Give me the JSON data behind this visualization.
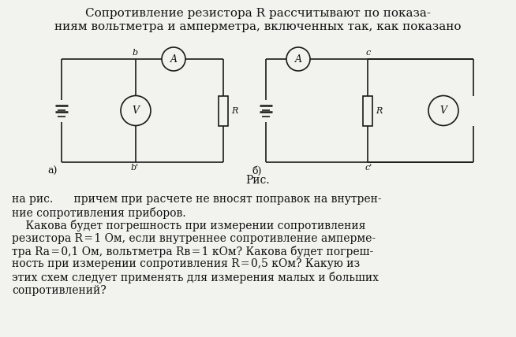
{
  "bg_color": "#f2f2ee",
  "line_color": "#1a1a1a",
  "circle_face": "#f2f2ee",
  "resistor_face": "#f2f2ee",
  "font_color": "#111111",
  "title1": "Сопротивление резистора R рассчитывают по показа-",
  "title2": "ниям вольтметра и амперметра, включенных так, как показано",
  "ris": "Рис.",
  "p1": "на рис.      причем при расчете не вносят поправок на внутрен-",
  "p2": "ние сопротивления приборов.",
  "p3": "    Какова будет погрешность при измерении сопротивления",
  "p4": "резистора R = 1 Ом, если внутреннее сопротивление амперме-",
  "p5": "тра Rа = 0,1 Ом, вольтметра Rв = 1 кОм? Какова будет погреш-",
  "p6": "ность при измерении сопротивления R = 0,5 кОм? Какую из",
  "p7": "этих схем следует применять для измерения малых и больших",
  "p8": "сопротивлений?"
}
